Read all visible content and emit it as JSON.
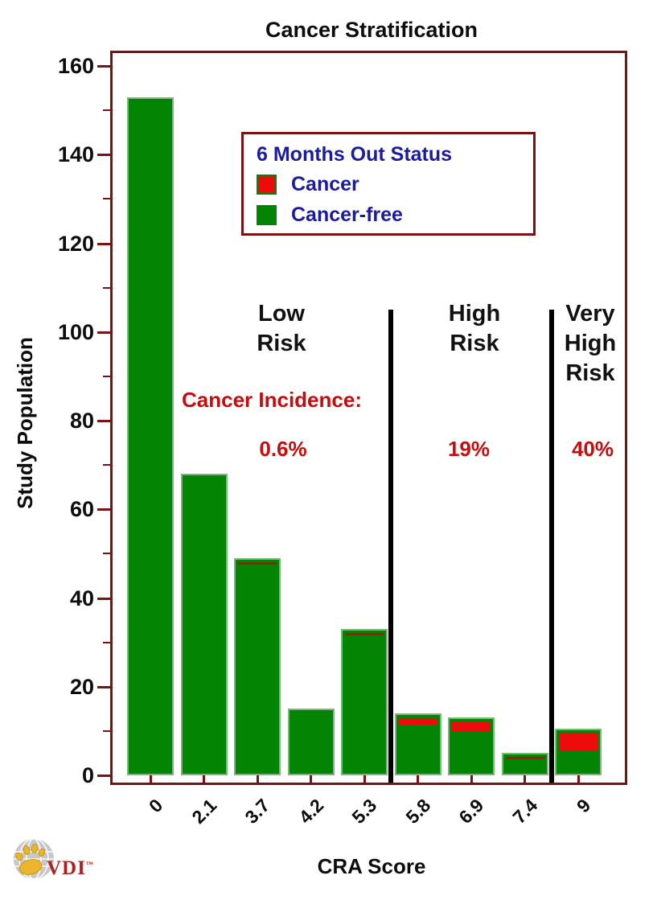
{
  "title": "Cancer Stratification",
  "y_axis_label": "Study Population",
  "x_axis_label": "CRA Score",
  "legend": {
    "title": "6 Months Out Status",
    "items": [
      {
        "label": "Cancer",
        "color": "#ee0b0b"
      },
      {
        "label": "Cancer-free",
        "color": "#048404"
      }
    ]
  },
  "logo": {
    "text": "VDI",
    "mark": "™"
  },
  "colors": {
    "frame": "#7a1113",
    "bar_green": "#048404",
    "bar_red": "#ee0b0b",
    "thin_red_sliver": "#b21212",
    "legend_text": "#1b1ba0",
    "annotation_red": "#c60c0c",
    "separator": "#000000"
  },
  "chart_data": {
    "type": "bar",
    "stacked": true,
    "title": "Cancer Stratification",
    "xlabel": "CRA Score",
    "ylabel": "Study Population",
    "categories": [
      "0",
      "2.1",
      "3.7",
      "4.2",
      "5.3",
      "5.8",
      "6.9",
      "7.4",
      "9"
    ],
    "series": [
      {
        "name": "Cancer-free",
        "color": "#048404",
        "values": [
          153,
          68,
          48.5,
          15,
          32.5,
          12.5,
          11,
          4.5,
          6.5
        ]
      },
      {
        "name": "Cancer",
        "color": "#ee0b0b",
        "values": [
          0,
          0,
          0.5,
          0,
          0.5,
          1.5,
          2,
          0.5,
          4
        ]
      }
    ],
    "totals": [
      153,
      68,
      49,
      15,
      33,
      14,
      13,
      5,
      10.5
    ],
    "ylim": [
      0,
      160
    ],
    "y_major_ticks": [
      0,
      20,
      40,
      60,
      80,
      100,
      120,
      140,
      160
    ],
    "y_minor_ticks": [
      10,
      30,
      50,
      70,
      90,
      110,
      130,
      150
    ],
    "grid": false,
    "legend_position": "upper-left-inside",
    "incidence_heading": "Cancer Incidence:",
    "risk_zones": [
      {
        "label": "Low\nRisk",
        "incidence": "0.6%"
      },
      {
        "label": "High\nRisk",
        "incidence": "19%"
      },
      {
        "label": "Very\nHigh\nRisk",
        "incidence": "40%"
      }
    ],
    "separators_between_bars": [
      [
        4,
        5
      ],
      [
        7,
        8
      ]
    ]
  }
}
